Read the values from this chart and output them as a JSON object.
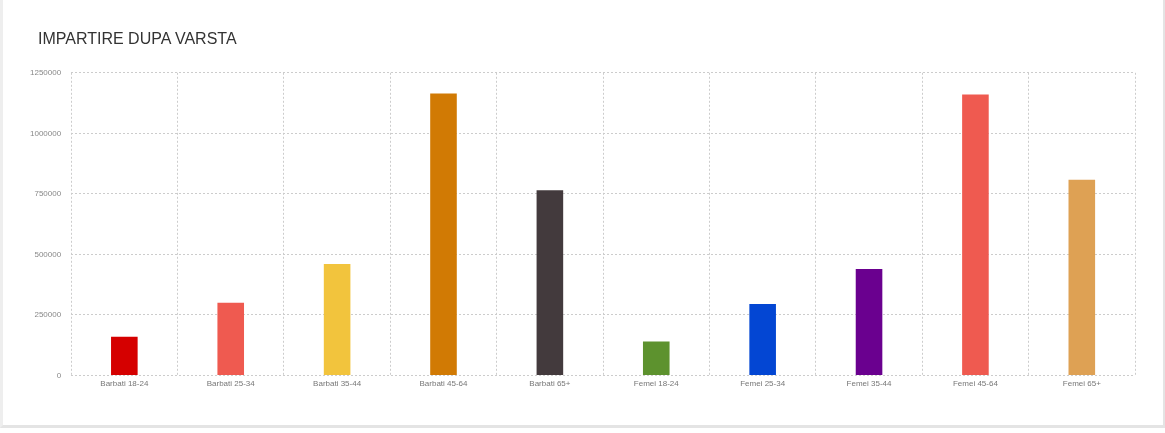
{
  "chart_data": {
    "type": "bar",
    "title": "IMPARTIRE DUPA VARSTA",
    "categories": [
      "Barbati 18-24",
      "Barbati 25-34",
      "Barbati 35-44",
      "Barbati 45-64",
      "Barbati 65+",
      "Femei 18-24",
      "Femei 25-34",
      "Femei 35-44",
      "Femei 45-64",
      "Femei 65+"
    ],
    "values": [
      160000,
      300000,
      460000,
      1165000,
      765000,
      140000,
      295000,
      440000,
      1160000,
      808000
    ],
    "colors": [
      "#d50000",
      "#ef5a50",
      "#f2c43d",
      "#d17a04",
      "#433a3d",
      "#5d922e",
      "#0346d3",
      "#6a008f",
      "#ef5a50",
      "#dea154"
    ],
    "ylim": [
      0,
      1250000
    ],
    "yticks": [
      0,
      250000,
      500000,
      750000,
      1000000,
      1250000
    ],
    "grid": true
  }
}
